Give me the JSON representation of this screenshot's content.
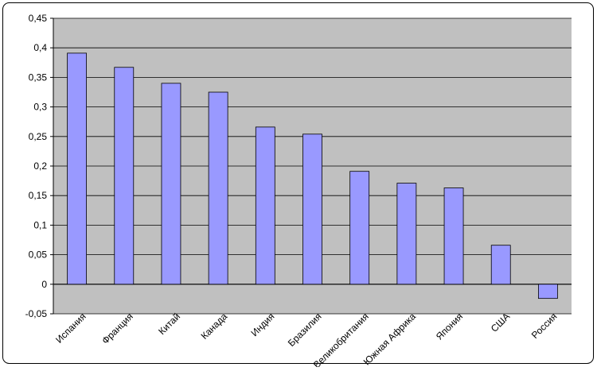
{
  "chart_data": {
    "type": "bar",
    "categories": [
      "Испания",
      "Франция",
      "Китай",
      "Канада",
      "Индия",
      "Бразилия",
      "Великобритания",
      "Южная Африка",
      "Япония",
      "США",
      "Россия"
    ],
    "values": [
      0.391,
      0.367,
      0.34,
      0.325,
      0.266,
      0.254,
      0.191,
      0.171,
      0.163,
      0.066,
      -0.024
    ],
    "color": "#9999ff",
    "ylim": [
      -0.05,
      0.45
    ],
    "yticks": [
      {
        "value": -0.05,
        "label": "-0,05"
      },
      0,
      {
        "value": 0.05,
        "label": "0,05"
      },
      {
        "value": 0.1,
        "label": "0,1"
      },
      {
        "value": 0.15,
        "label": "0,15"
      },
      {
        "value": 0.2,
        "label": "0,2"
      },
      {
        "value": 0.25,
        "label": "0,25"
      },
      {
        "value": 0.3,
        "label": "0,3"
      },
      {
        "value": 0.35,
        "label": "0,35"
      },
      {
        "value": 0.4,
        "label": "0,4"
      },
      {
        "value": 0.45,
        "label": "0,45"
      }
    ],
    "grid": true
  }
}
